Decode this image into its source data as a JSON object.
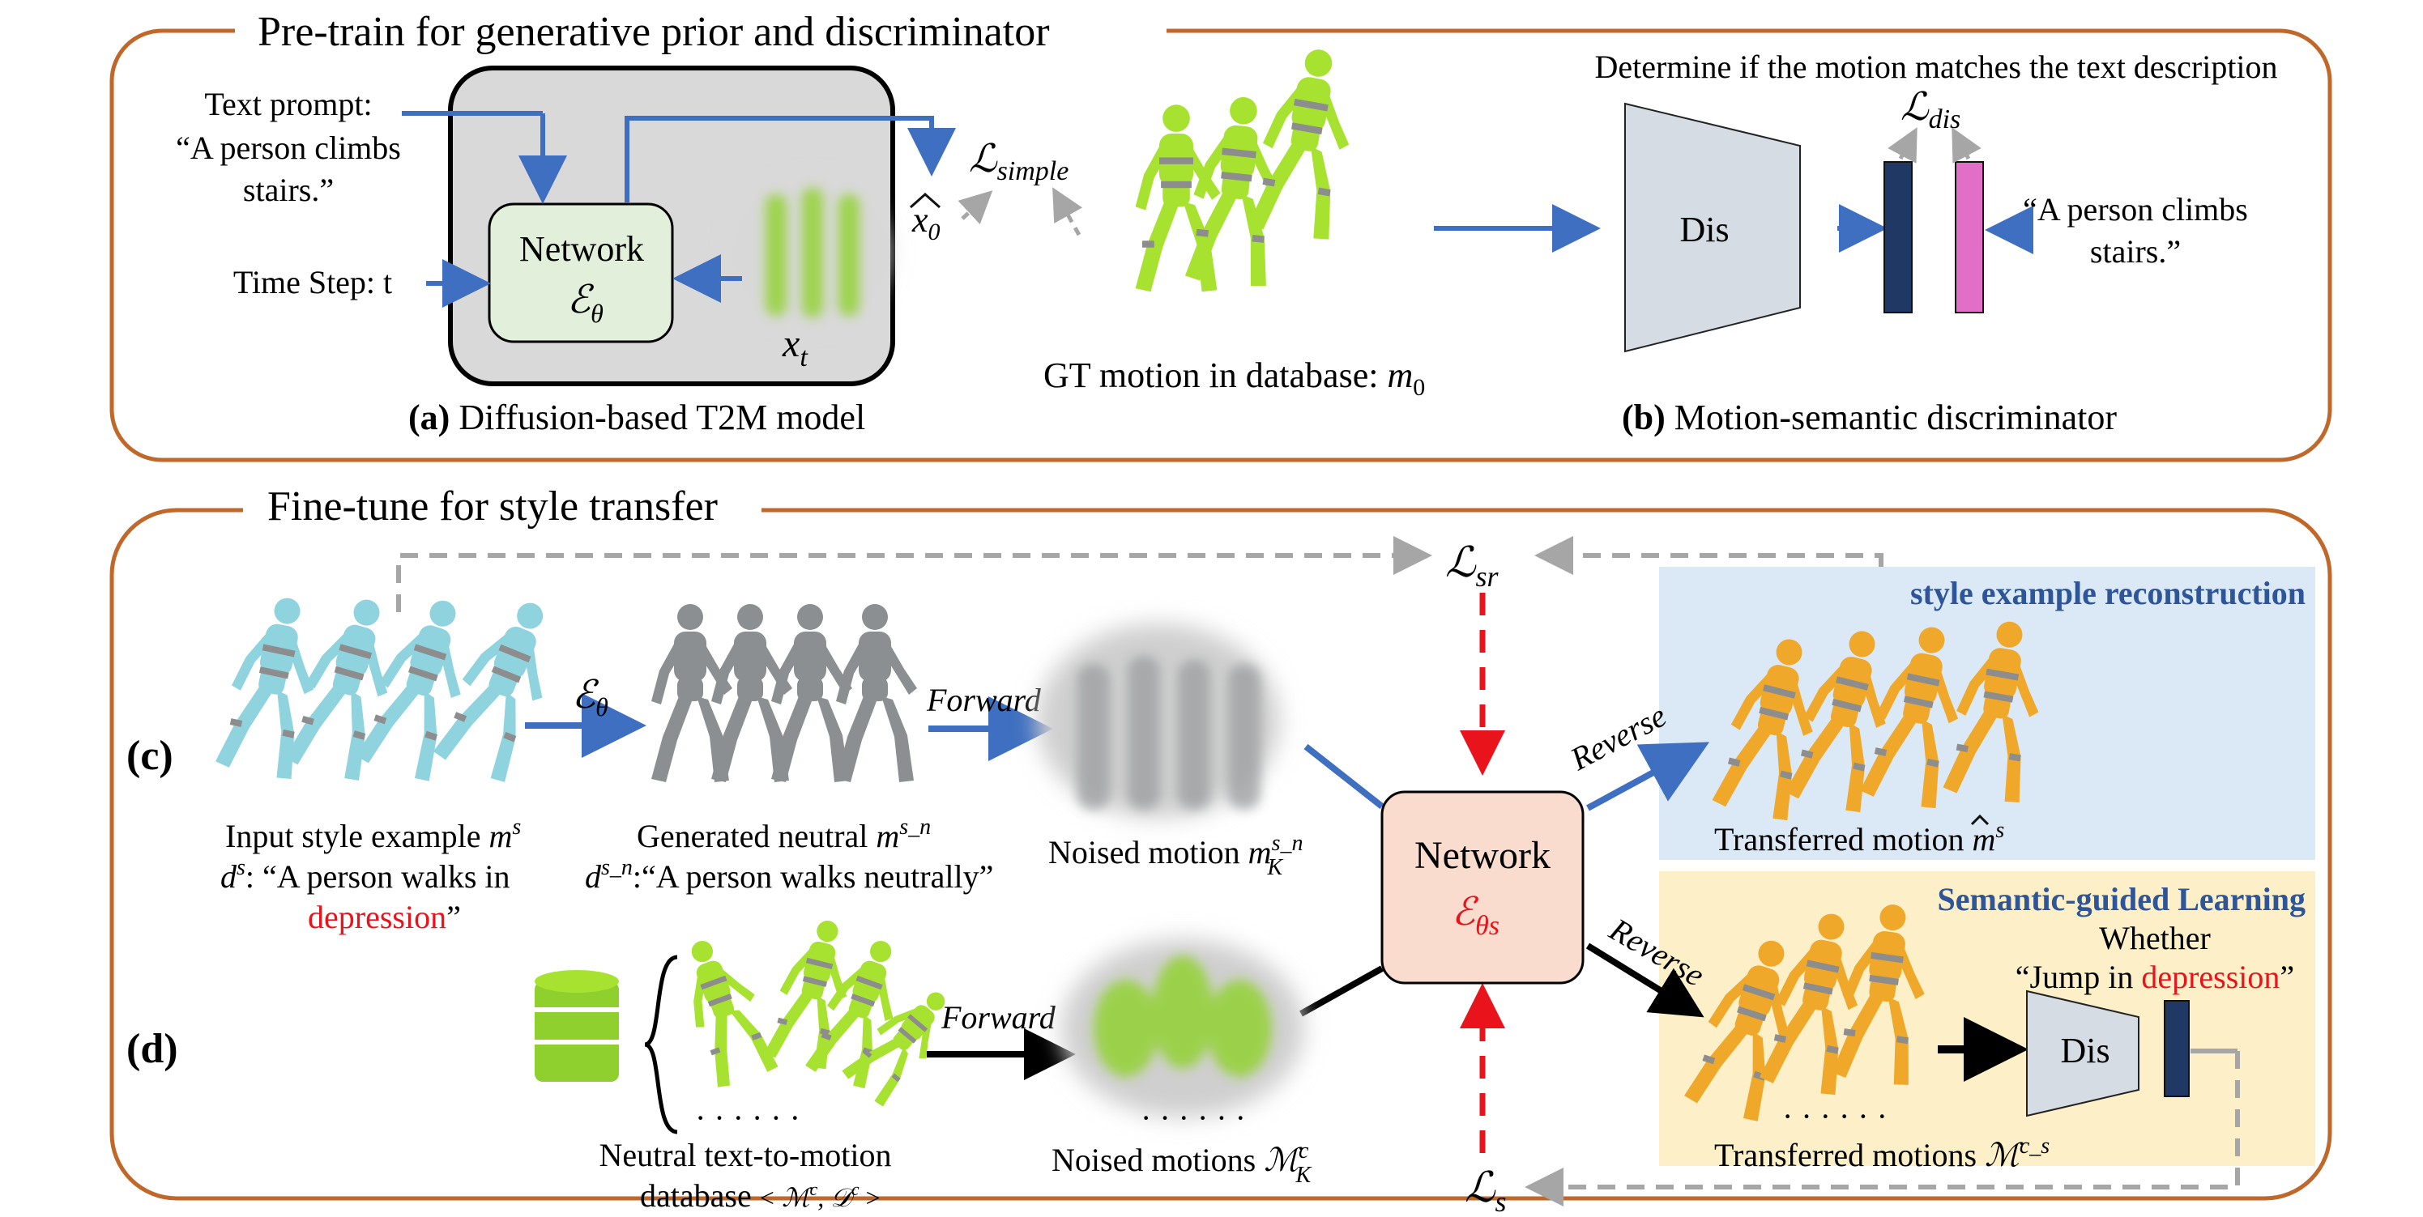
{
  "colors": {
    "panel_border": "#c0672a",
    "blue_arrow": "#3e6fc0",
    "gray_dash": "#a6a6a6",
    "red_dash": "#e8131b",
    "network_green": "#e2efda",
    "network_peach": "#f9dccd",
    "discriminator": "#d6dce4",
    "bar_navy": "#203864",
    "bar_pink": "#e26fc7",
    "recon_bg": "#dbe8f5",
    "semantic_bg": "#fdf0c8",
    "figure_cyan": "#8fd3df",
    "figure_gray": "#8c8f91",
    "figure_green": "#a6e22f",
    "figure_orange": "#f0a82a",
    "heading_blue": "#2e5597",
    "depression_red": "#e8131b"
  },
  "top_panel": {
    "title": "Pre-train for generative prior and discriminator",
    "text_prompt_line1": "Text prompt:",
    "text_prompt_line2": "“A person climbs",
    "text_prompt_line3": "stairs.”",
    "time_step": "Time Step: t",
    "network_label": "Network",
    "network_symbol": "ℰ",
    "network_sub": "θ",
    "xt_label": "x",
    "xt_sub": "t",
    "x0_label": "x",
    "x0_sub": "0",
    "loss_simple": "ℒ",
    "loss_simple_sub": "simple",
    "gt_motion": "GT motion in database: ",
    "gt_symbol": "m",
    "gt_sub": "0",
    "caption_a_tag": "(a)",
    "caption_a_text": " Diffusion-based T2M model",
    "determine_text": "Determine if the motion matches the text description",
    "loss_dis": "ℒ",
    "loss_dis_sub": "dis",
    "dis_label": "Dis",
    "prompt_right_line1": "“A person climbs",
    "prompt_right_line2": "stairs.”",
    "caption_b_tag": "(b)",
    "caption_b_text": " Motion-semantic discriminator"
  },
  "bottom_panel": {
    "title": "Fine-tune for style transfer",
    "loss_sr": "ℒ",
    "loss_sr_sub": "sr",
    "loss_s": "ℒ",
    "loss_s_sub": "s",
    "label_c": "(c)",
    "label_d": "(d)",
    "input_style_line1": "Input style example ",
    "input_style_symbol": "m",
    "input_style_sup": "s",
    "d_symbol": "d",
    "d_sup": "s",
    "d_text": ": “A person walks in",
    "depression_word": "depression",
    "close_quote": "”",
    "eps_arrow_symbol": "ℰ",
    "eps_arrow_sub": "θ",
    "generated_line1": "Generated  neutral ",
    "generated_symbol": "m",
    "generated_sup": "s_n",
    "dsn_symbol": "d",
    "dsn_sup": "s_n",
    "dsn_text": ":“A person walks neutrally”",
    "forward_label": "Forward",
    "noised_motion": "Noised motion ",
    "noised_symbol": "m",
    "noised_sup": "s_n",
    "noised_sub": "K",
    "network_label": "Network",
    "network_symbol": "ℰ",
    "network_sub": "θs",
    "reverse_label": "Reverse",
    "recon_heading": "style example reconstruction",
    "transferred_motion": "Transferred motion ",
    "transferred_symbol": "m",
    "transferred_sup": "s",
    "semantic_heading": "Semantic-guided Learning",
    "whether_text": "Whether",
    "jump_prefix": "“Jump in ",
    "jump_depression": "depression",
    "jump_suffix": "”",
    "dis_label": "Dis",
    "transferred_motions": "Transferred motions ",
    "transferred_motions_symbol": "ℳ",
    "transferred_motions_sup": "c_s",
    "dots": "· · · · · ·",
    "database_line1": "Neutral text-to-motion",
    "database_line2": "database",
    "database_tuple": " < ℳ",
    "database_tuple_sup1": "c",
    "database_tuple_mid": ", 𝒟",
    "database_tuple_sup2": "c",
    "database_tuple_end": " >",
    "noised_motions": "Noised motions ",
    "noised_motions_symbol": "ℳ",
    "noised_motions_sup": "c",
    "noised_motions_sub": "K"
  }
}
